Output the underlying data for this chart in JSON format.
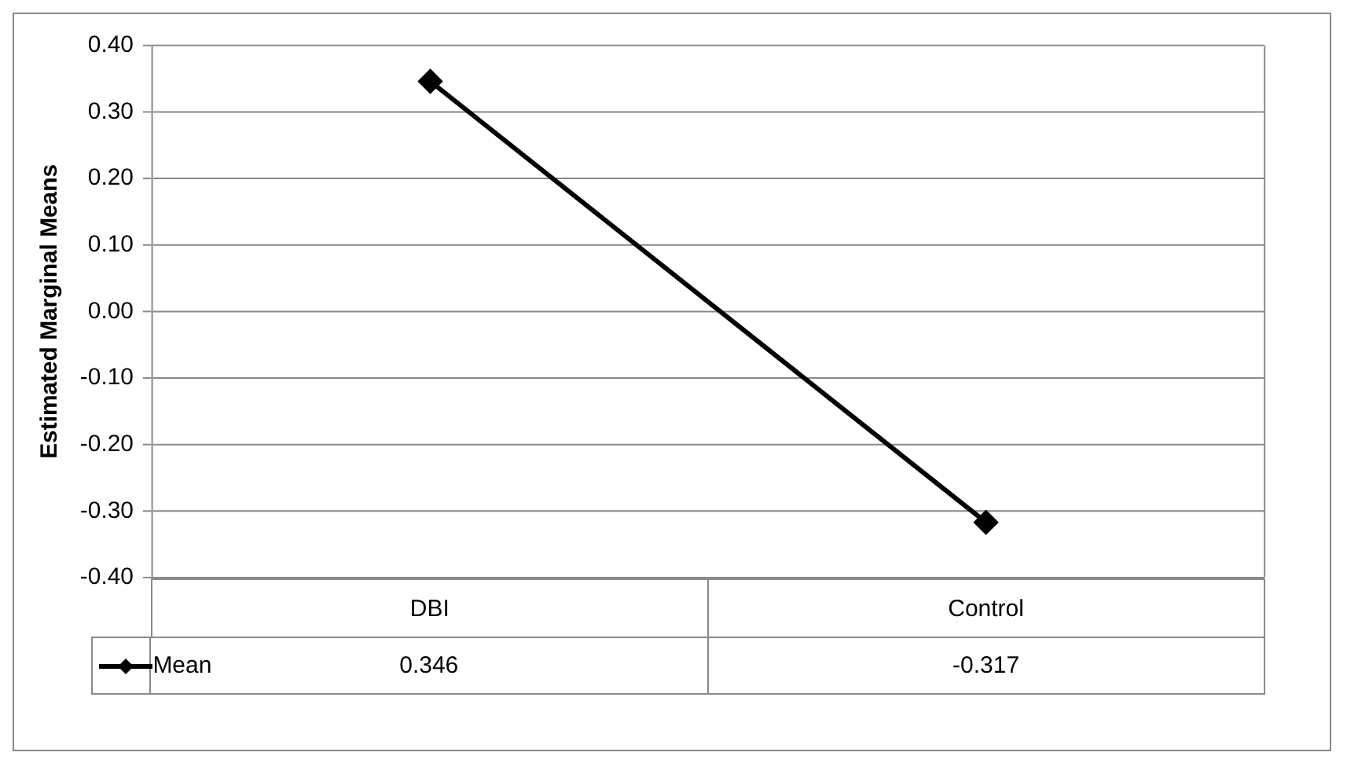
{
  "chart_data": {
    "type": "line",
    "ylabel": "Estimated Marginal Means",
    "categories": [
      "DBI",
      "Control"
    ],
    "series": [
      {
        "name": "Mean",
        "color": "#000000",
        "values": [
          0.346,
          -0.317
        ]
      }
    ],
    "ylim": [
      -0.4,
      0.4
    ],
    "yticks": [
      {
        "value": -0.4,
        "label": "-0.40"
      },
      {
        "value": -0.3,
        "label": "-0.30"
      },
      {
        "value": -0.2,
        "label": "-0.20"
      },
      {
        "value": -0.1,
        "label": "-0.10"
      },
      {
        "value": 0,
        "label": "0.00"
      },
      {
        "value": 0.1,
        "label": "0.10"
      },
      {
        "value": 0.2,
        "label": "0.20"
      },
      {
        "value": 0.3,
        "label": "0.30"
      },
      {
        "value": 0.4,
        "label": "0.40"
      }
    ],
    "grid": "y",
    "legend": "bottom",
    "marker": "diamond",
    "line_style": "solid",
    "data_labels": true
  }
}
